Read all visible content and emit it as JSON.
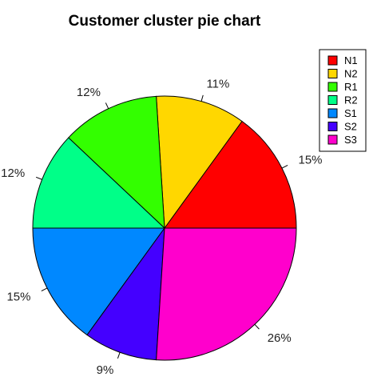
{
  "chart_data": {
    "type": "pie",
    "title": "Customer cluster pie chart",
    "start_angle_deg": 0,
    "direction": "counterclockwise",
    "legend_position": "top-right",
    "slices": [
      {
        "name": "N1",
        "value": 15,
        "label": "15%",
        "color": "#ff0000"
      },
      {
        "name": "N2",
        "value": 11,
        "label": "11%",
        "color": "#ffd700"
      },
      {
        "name": "R1",
        "value": 12,
        "label": "12%",
        "color": "#33ff00"
      },
      {
        "name": "R2",
        "value": 12,
        "label": "12%",
        "color": "#00ff88"
      },
      {
        "name": "S1",
        "value": 15,
        "label": "15%",
        "color": "#0088ff"
      },
      {
        "name": "S2",
        "value": 9,
        "label": "9%",
        "color": "#4400ff"
      },
      {
        "name": "S3",
        "value": 26,
        "label": "26%",
        "color": "#ff00cc"
      }
    ]
  }
}
